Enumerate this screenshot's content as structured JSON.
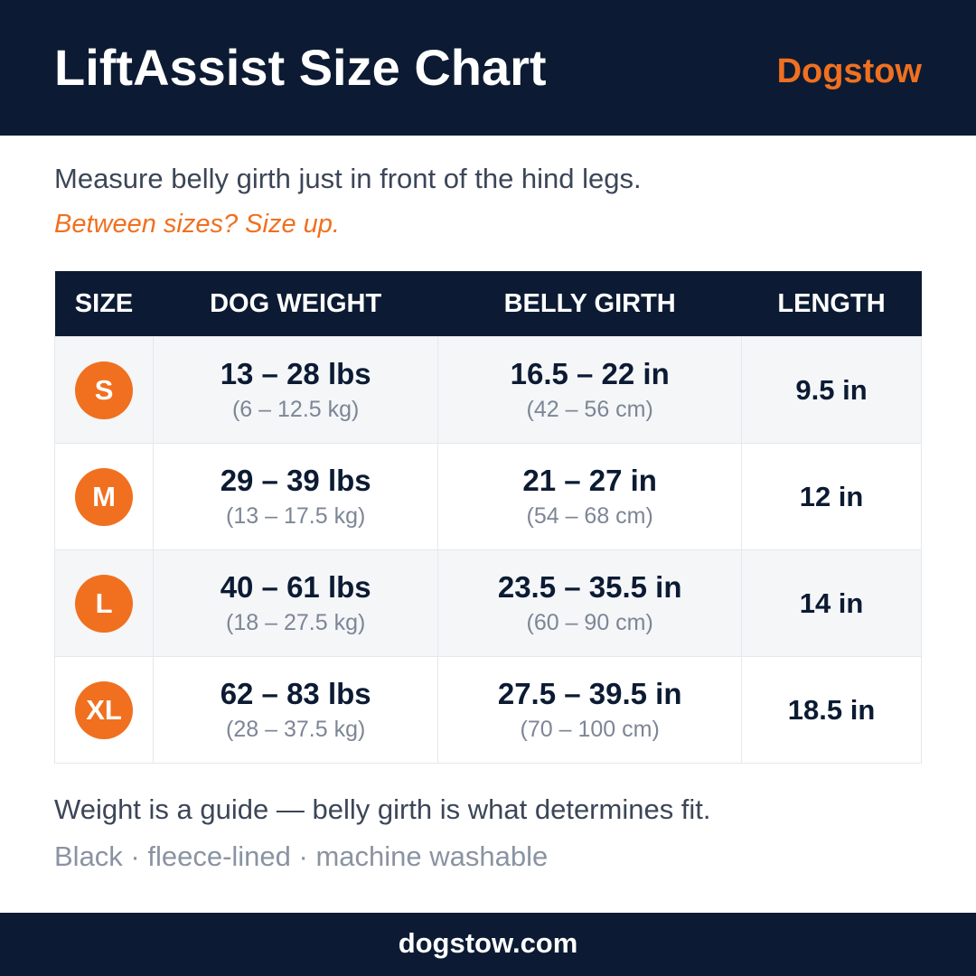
{
  "header": {
    "title": "LiftAssist Size Chart",
    "brand": "Dogstow"
  },
  "intro": {
    "line": "Measure belly girth just in front of the hind legs.",
    "tip": "Between sizes? Size up."
  },
  "table": {
    "columns": [
      "SIZE",
      "DOG WEIGHT",
      "BELLY GIRTH",
      "LENGTH"
    ],
    "rows": [
      [
        "S",
        {
          "main": "13 – 28 lbs",
          "sub": "(6 – 12.5 kg)"
        },
        {
          "main": "16.5 – 22 in",
          "sub": "(42 – 56 cm)"
        },
        "9.5 in"
      ],
      [
        "M",
        {
          "main": "29 – 39 lbs",
          "sub": "(13 – 17.5 kg)"
        },
        {
          "main": "21 – 27 in",
          "sub": "(54 – 68 cm)"
        },
        "12 in"
      ],
      [
        "L",
        {
          "main": "40 – 61 lbs",
          "sub": "(18 – 27.5 kg)"
        },
        {
          "main": "23.5 – 35.5 in",
          "sub": "(60 – 90 cm)"
        },
        "14 in"
      ],
      [
        "XL",
        {
          "main": "62 – 83 lbs",
          "sub": "(28 – 37.5 kg)"
        },
        {
          "main": "27.5 – 39.5 in",
          "sub": "(70 – 100 cm)"
        },
        "18.5 in"
      ]
    ]
  },
  "notes": {
    "guide": "Weight is a guide — belly girth is what determines fit.",
    "details": "Black · fleece-lined · machine washable"
  },
  "footer": {
    "url": "dogstow.com"
  }
}
